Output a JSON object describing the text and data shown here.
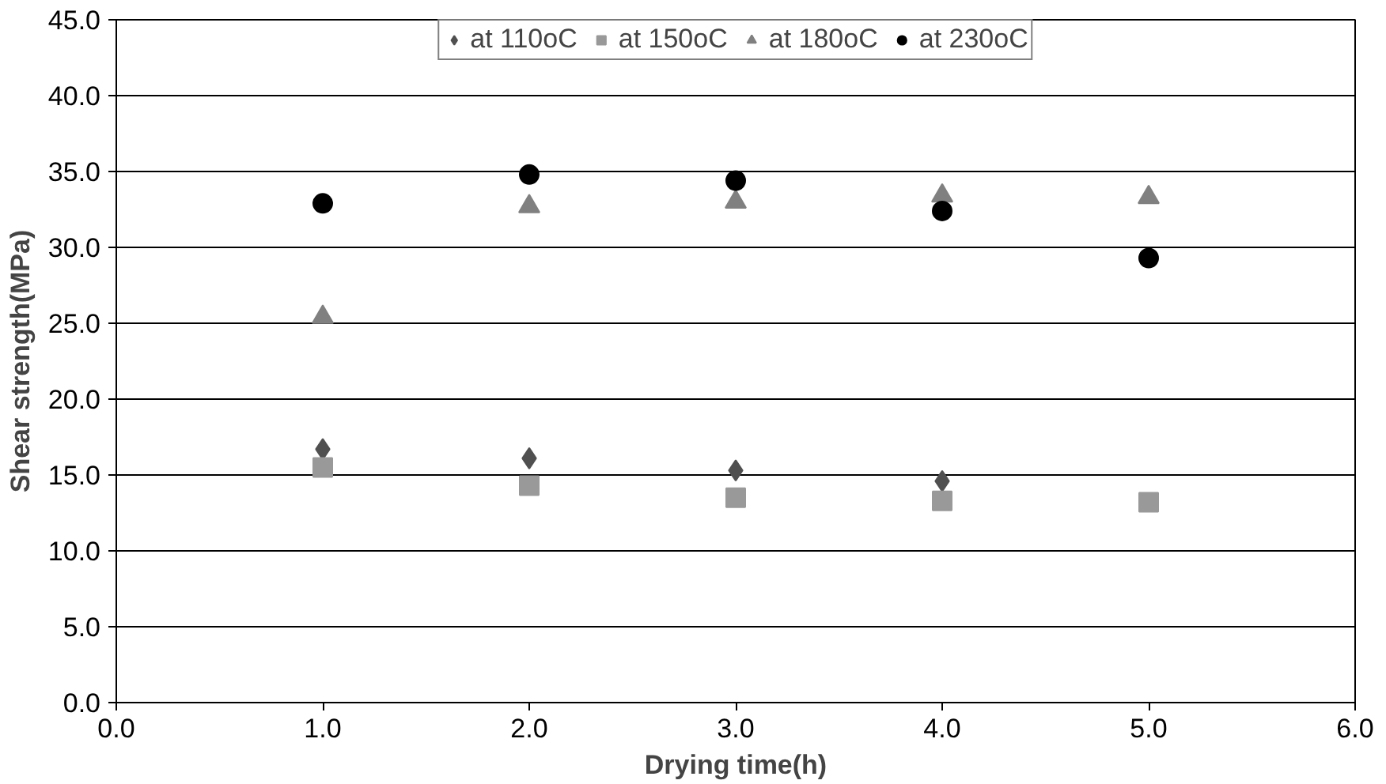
{
  "chart_data": {
    "type": "scatter",
    "xlabel": "Drying time(h)",
    "ylabel": "Shear strength(MPa)",
    "x": [
      1,
      2,
      3,
      4,
      5
    ],
    "series": [
      {
        "name": "at 110oC",
        "color": "#505050",
        "marker": "diamond",
        "values": [
          16.7,
          16.1,
          15.3,
          14.6,
          null
        ]
      },
      {
        "name": "at 150oC",
        "color": "#999999",
        "marker": "square",
        "values": [
          15.5,
          14.3,
          13.5,
          13.3,
          13.2
        ]
      },
      {
        "name": "at 180oC",
        "color": "#808080",
        "marker": "triangle",
        "values": [
          25.4,
          32.7,
          33.0,
          33.4,
          33.3
        ]
      },
      {
        "name": "at 230oC",
        "color": "#000000",
        "marker": "circle",
        "values": [
          32.9,
          34.8,
          34.4,
          32.4,
          29.3
        ]
      }
    ],
    "xlim": [
      0,
      6
    ],
    "ylim": [
      0,
      45
    ],
    "xticks": [
      {
        "value": 0,
        "label": "0.0"
      },
      {
        "value": 1,
        "label": "1.0"
      },
      {
        "value": 2,
        "label": "2.0"
      },
      {
        "value": 3,
        "label": "3.0"
      },
      {
        "value": 4,
        "label": "4.0"
      },
      {
        "value": 5,
        "label": "5.0"
      },
      {
        "value": 6,
        "label": "6.0"
      }
    ],
    "yticks": [
      {
        "value": 0,
        "label": "0.0"
      },
      {
        "value": 5,
        "label": "5.0"
      },
      {
        "value": 10,
        "label": "10.0"
      },
      {
        "value": 15,
        "label": "15.0"
      },
      {
        "value": 20,
        "label": "20.0"
      },
      {
        "value": 25,
        "label": "25.0"
      },
      {
        "value": 30,
        "label": "30.0"
      },
      {
        "value": 35,
        "label": "35.0"
      },
      {
        "value": 40,
        "label": "40.0"
      },
      {
        "value": 45,
        "label": "45.0"
      }
    ],
    "grid": "y",
    "legend": "top"
  }
}
